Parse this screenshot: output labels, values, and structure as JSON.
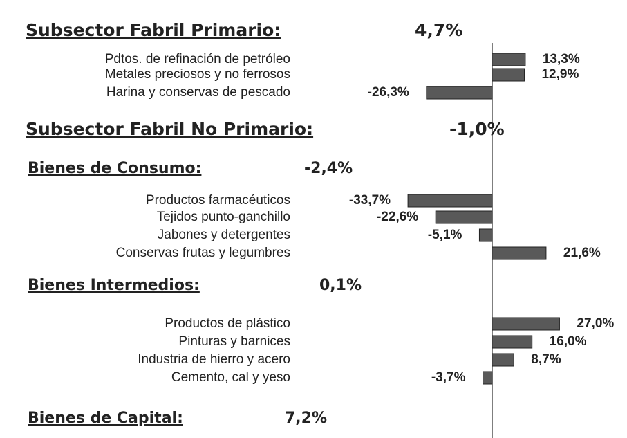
{
  "chart_data": {
    "type": "hbar",
    "color": "#595959",
    "xlim": [
      -197,
      54
    ],
    "sections": [
      {
        "title": "Subsector Fabril Primario:",
        "summary": "4,7%",
        "categories": [
          "Pdtos. de refinación de petróleo",
          "Metales preciosos y no ferrosos",
          "Harina y conservas de pescado"
        ],
        "values": [
          13.3,
          12.9,
          -26.3
        ],
        "value_labels": [
          "13,3%",
          "12,9%",
          "-26,3%"
        ]
      },
      {
        "title": "Subsector Fabril No Primario:",
        "summary": "-1,0%"
      },
      {
        "title": "Bienes de Consumo:",
        "summary": "-2,4%",
        "categories": [
          "Productos farmacéuticos",
          "Tejidos punto-ganchillo",
          "Jabones y detergentes",
          "Conservas frutas y legumbres"
        ],
        "values": [
          -33.7,
          -22.6,
          -5.1,
          21.6
        ],
        "value_labels": [
          "-33,7%",
          "-22,6%",
          "-5,1%",
          "21,6%"
        ]
      },
      {
        "title": "Bienes Intermedios:",
        "summary": "0,1%",
        "categories": [
          "Productos de plástico",
          "Pinturas y barnices",
          "Industria de hierro y acero",
          "Cemento, cal y yeso"
        ],
        "values": [
          27.0,
          16.0,
          8.7,
          -3.7
        ],
        "value_labels": [
          "27,0%",
          "16,0%",
          "8,7%",
          "-3,7%"
        ]
      },
      {
        "title": "Bienes de Capital:",
        "summary": "7,2%"
      }
    ]
  }
}
